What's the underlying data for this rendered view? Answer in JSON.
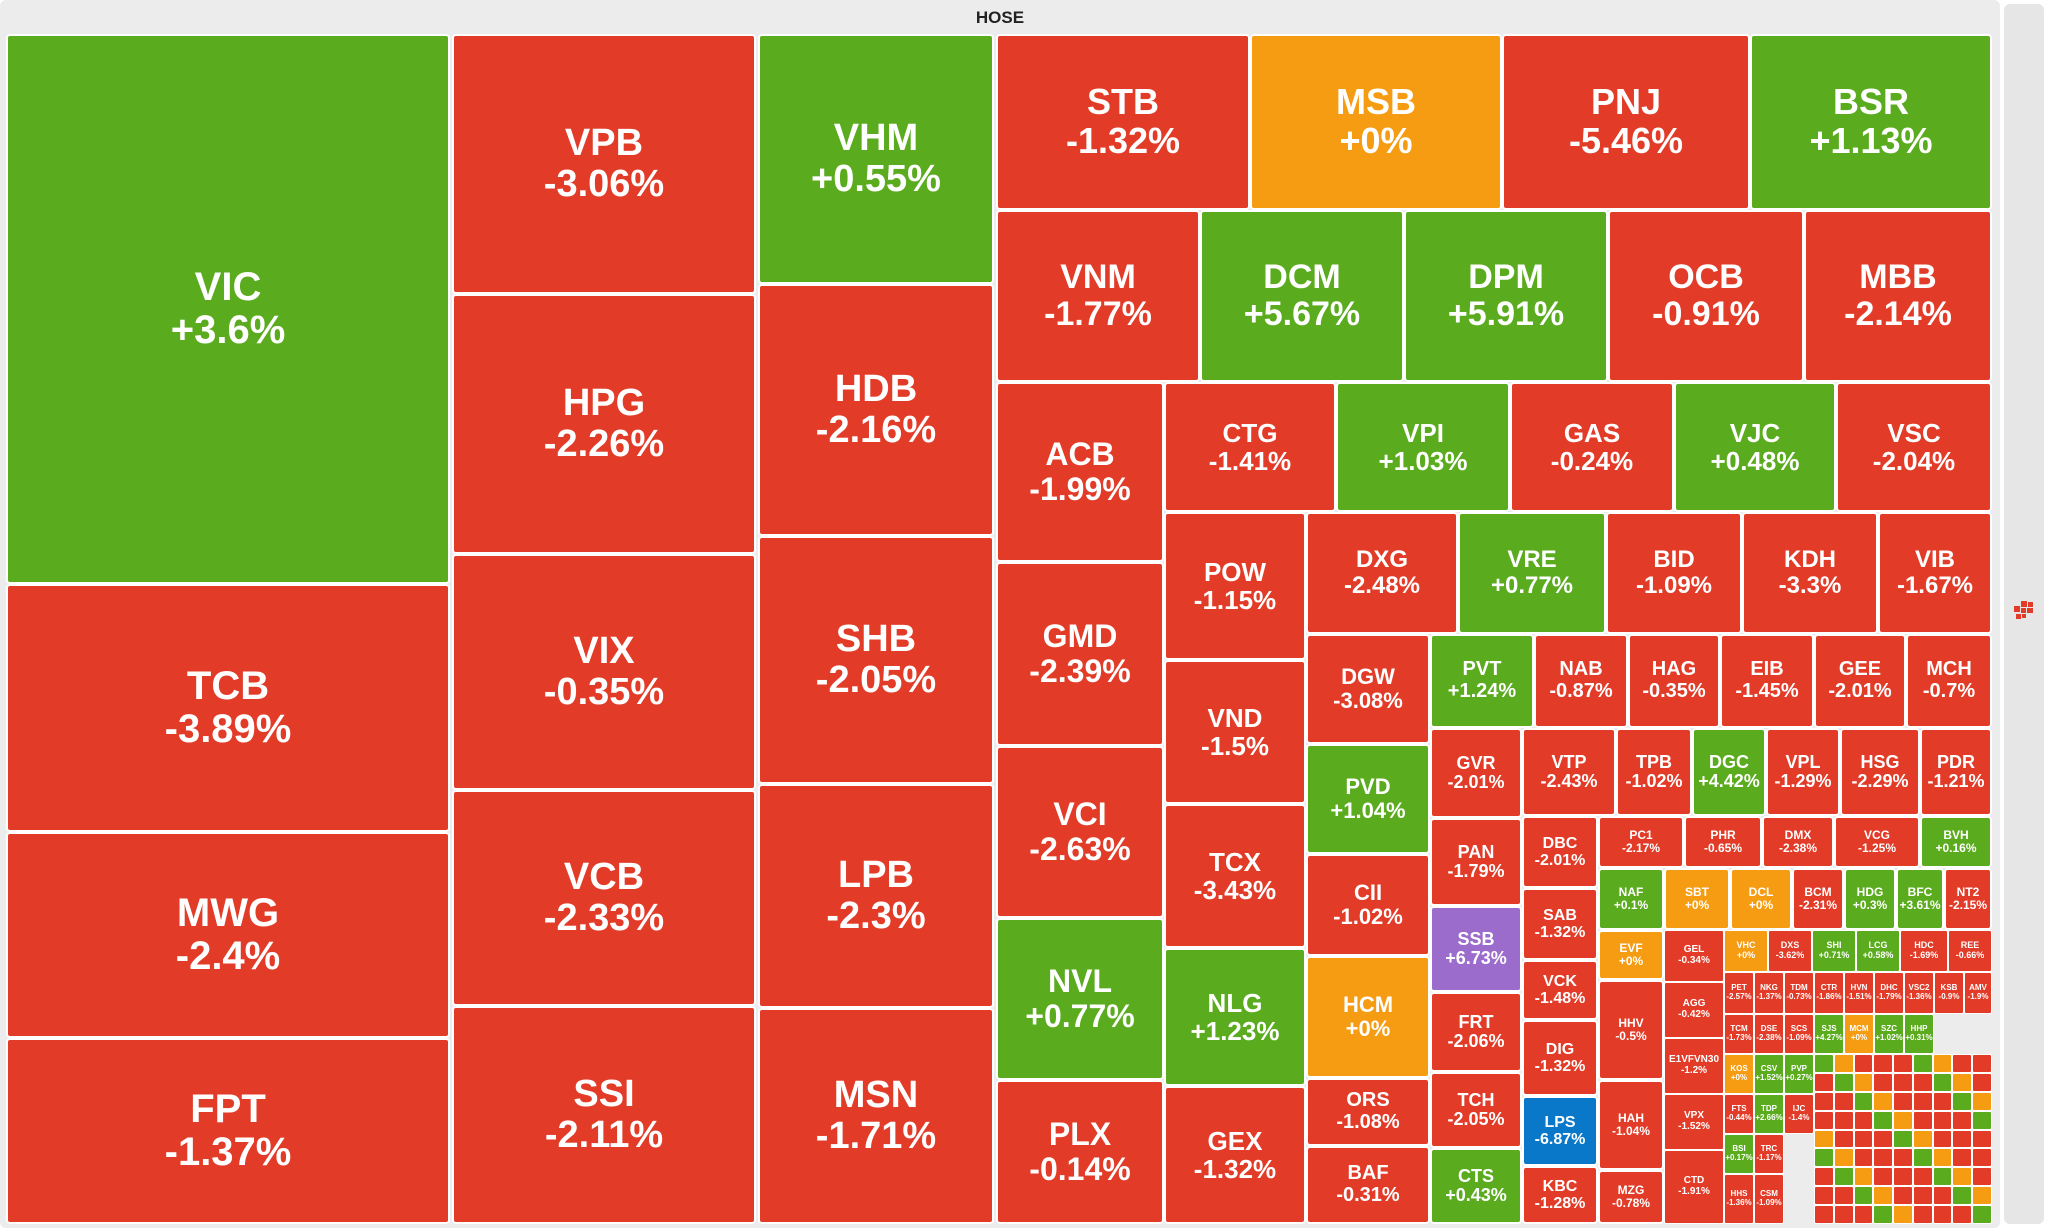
{
  "exchange_title": "HOSE",
  "colors": {
    "red": "#e23b28",
    "green": "#5aab1e",
    "orange": "#f59c12",
    "purple": "#9b6ccc",
    "blue": "#0a78c8"
  },
  "side_icon": "treemap-icon",
  "tiles": [
    {
      "sym": "VIC",
      "pct": "+3.6%",
      "color": "green"
    },
    {
      "sym": "TCB",
      "pct": "-3.89%",
      "color": "red"
    },
    {
      "sym": "MWG",
      "pct": "-2.4%",
      "color": "red"
    },
    {
      "sym": "FPT",
      "pct": "-1.37%",
      "color": "red"
    },
    {
      "sym": "VPB",
      "pct": "-3.06%",
      "color": "red"
    },
    {
      "sym": "HPG",
      "pct": "-2.26%",
      "color": "red"
    },
    {
      "sym": "VIX",
      "pct": "-0.35%",
      "color": "red"
    },
    {
      "sym": "VCB",
      "pct": "-2.33%",
      "color": "red"
    },
    {
      "sym": "SSI",
      "pct": "-2.11%",
      "color": "red"
    },
    {
      "sym": "VHM",
      "pct": "+0.55%",
      "color": "green"
    },
    {
      "sym": "HDB",
      "pct": "-2.16%",
      "color": "red"
    },
    {
      "sym": "SHB",
      "pct": "-2.05%",
      "color": "red"
    },
    {
      "sym": "LPB",
      "pct": "-2.3%",
      "color": "red"
    },
    {
      "sym": "MSN",
      "pct": "-1.71%",
      "color": "red"
    },
    {
      "sym": "STB",
      "pct": "-1.32%",
      "color": "red"
    },
    {
      "sym": "MSB",
      "pct": "+0%",
      "color": "orange"
    },
    {
      "sym": "PNJ",
      "pct": "-5.46%",
      "color": "red"
    },
    {
      "sym": "BSR",
      "pct": "+1.13%",
      "color": "green"
    },
    {
      "sym": "VNM",
      "pct": "-1.77%",
      "color": "red"
    },
    {
      "sym": "DCM",
      "pct": "+5.67%",
      "color": "green"
    },
    {
      "sym": "DPM",
      "pct": "+5.91%",
      "color": "green"
    },
    {
      "sym": "OCB",
      "pct": "-0.91%",
      "color": "red"
    },
    {
      "sym": "MBB",
      "pct": "-2.14%",
      "color": "red"
    },
    {
      "sym": "ACB",
      "pct": "-1.99%",
      "color": "red"
    },
    {
      "sym": "GMD",
      "pct": "-2.39%",
      "color": "red"
    },
    {
      "sym": "VCI",
      "pct": "-2.63%",
      "color": "red"
    },
    {
      "sym": "NVL",
      "pct": "+0.77%",
      "color": "green"
    },
    {
      "sym": "PLX",
      "pct": "-0.14%",
      "color": "red"
    },
    {
      "sym": "CTG",
      "pct": "-1.41%",
      "color": "red"
    },
    {
      "sym": "VPI",
      "pct": "+1.03%",
      "color": "green"
    },
    {
      "sym": "GAS",
      "pct": "-0.24%",
      "color": "red"
    },
    {
      "sym": "VJC",
      "pct": "+0.48%",
      "color": "green"
    },
    {
      "sym": "VSC",
      "pct": "-2.04%",
      "color": "red"
    },
    {
      "sym": "POW",
      "pct": "-1.15%",
      "color": "red"
    },
    {
      "sym": "VND",
      "pct": "-1.5%",
      "color": "red"
    },
    {
      "sym": "TCX",
      "pct": "-3.43%",
      "color": "red"
    },
    {
      "sym": "NLG",
      "pct": "+1.23%",
      "color": "green"
    },
    {
      "sym": "GEX",
      "pct": "-1.32%",
      "color": "red"
    },
    {
      "sym": "DXG",
      "pct": "-2.48%",
      "color": "red"
    },
    {
      "sym": "VRE",
      "pct": "+0.77%",
      "color": "green"
    },
    {
      "sym": "BID",
      "pct": "-1.09%",
      "color": "red"
    },
    {
      "sym": "KDH",
      "pct": "-3.3%",
      "color": "red"
    },
    {
      "sym": "VIB",
      "pct": "-1.67%",
      "color": "red"
    },
    {
      "sym": "DGW",
      "pct": "-3.08%",
      "color": "red"
    },
    {
      "sym": "PVD",
      "pct": "+1.04%",
      "color": "green"
    },
    {
      "sym": "CII",
      "pct": "-1.02%",
      "color": "red"
    },
    {
      "sym": "HCM",
      "pct": "+0%",
      "color": "orange"
    },
    {
      "sym": "ORS",
      "pct": "-1.08%",
      "color": "red"
    },
    {
      "sym": "BAF",
      "pct": "-0.31%",
      "color": "red"
    },
    {
      "sym": "PVT",
      "pct": "+1.24%",
      "color": "green"
    },
    {
      "sym": "NAB",
      "pct": "-0.87%",
      "color": "red"
    },
    {
      "sym": "HAG",
      "pct": "-0.35%",
      "color": "red"
    },
    {
      "sym": "EIB",
      "pct": "-1.45%",
      "color": "red"
    },
    {
      "sym": "GEE",
      "pct": "-2.01%",
      "color": "red"
    },
    {
      "sym": "MCH",
      "pct": "-0.7%",
      "color": "red"
    },
    {
      "sym": "GVR",
      "pct": "-2.01%",
      "color": "red"
    },
    {
      "sym": "PAN",
      "pct": "-1.79%",
      "color": "red"
    },
    {
      "sym": "SSB",
      "pct": "+6.73%",
      "color": "purple"
    },
    {
      "sym": "FRT",
      "pct": "-2.06%",
      "color": "red"
    },
    {
      "sym": "TCH",
      "pct": "-2.05%",
      "color": "red"
    },
    {
      "sym": "CTS",
      "pct": "+0.43%",
      "color": "green"
    },
    {
      "sym": "VTP",
      "pct": "-2.43%",
      "color": "red"
    },
    {
      "sym": "TPB",
      "pct": "-1.02%",
      "color": "red"
    },
    {
      "sym": "DGC",
      "pct": "+4.42%",
      "color": "green"
    },
    {
      "sym": "VPL",
      "pct": "-1.29%",
      "color": "red"
    },
    {
      "sym": "HSG",
      "pct": "-2.29%",
      "color": "red"
    },
    {
      "sym": "PDR",
      "pct": "-1.21%",
      "color": "red"
    },
    {
      "sym": "DBC",
      "pct": "-2.01%",
      "color": "red"
    },
    {
      "sym": "SAB",
      "pct": "-1.32%",
      "color": "red"
    },
    {
      "sym": "VCK",
      "pct": "-1.48%",
      "color": "red"
    },
    {
      "sym": "DIG",
      "pct": "-1.32%",
      "color": "red"
    },
    {
      "sym": "LPS",
      "pct": "-6.87%",
      "color": "blue"
    },
    {
      "sym": "KBC",
      "pct": "-1.28%",
      "color": "red"
    },
    {
      "sym": "PC1",
      "pct": "-2.17%",
      "color": "red"
    },
    {
      "sym": "PHR",
      "pct": "-0.65%",
      "color": "red"
    },
    {
      "sym": "DMX",
      "pct": "-2.38%",
      "color": "red"
    },
    {
      "sym": "VCG",
      "pct": "-1.25%",
      "color": "red"
    },
    {
      "sym": "BVH",
      "pct": "+0.16%",
      "color": "green"
    },
    {
      "sym": "NAF",
      "pct": "+0.1%",
      "color": "green"
    },
    {
      "sym": "SBT",
      "pct": "+0%",
      "color": "orange"
    },
    {
      "sym": "DCL",
      "pct": "+0%",
      "color": "orange"
    },
    {
      "sym": "BCM",
      "pct": "-2.31%",
      "color": "red"
    },
    {
      "sym": "HDG",
      "pct": "+0.3%",
      "color": "green"
    },
    {
      "sym": "BFC",
      "pct": "+3.61%",
      "color": "green"
    },
    {
      "sym": "NT2",
      "pct": "-2.15%",
      "color": "red"
    },
    {
      "sym": "EVF",
      "pct": "+0%",
      "color": "orange"
    },
    {
      "sym": "HHV",
      "pct": "-0.5%",
      "color": "red"
    },
    {
      "sym": "HAH",
      "pct": "-1.04%",
      "color": "red"
    },
    {
      "sym": "MZG",
      "pct": "-0.78%",
      "color": "red"
    },
    {
      "sym": "GEL",
      "pct": "-0.34%",
      "color": "red"
    },
    {
      "sym": "AGG",
      "pct": "-0.42%",
      "color": "red"
    },
    {
      "sym": "E1VFVN30",
      "pct": "-1.2%",
      "color": "red"
    },
    {
      "sym": "VPX",
      "pct": "-1.52%",
      "color": "red"
    },
    {
      "sym": "CTD",
      "pct": "-1.91%",
      "color": "red"
    },
    {
      "sym": "VHC",
      "pct": "+0%",
      "color": "orange"
    },
    {
      "sym": "DXS",
      "pct": "-3.62%",
      "color": "red"
    },
    {
      "sym": "SHI",
      "pct": "+0.71%",
      "color": "green"
    },
    {
      "sym": "LCG",
      "pct": "+0.58%",
      "color": "green"
    },
    {
      "sym": "HDC",
      "pct": "-1.69%",
      "color": "red"
    },
    {
      "sym": "REE",
      "pct": "-0.66%",
      "color": "red"
    },
    {
      "sym": "PET",
      "pct": "-2.57%",
      "color": "red"
    },
    {
      "sym": "TCM",
      "pct": "-1.73%",
      "color": "red"
    },
    {
      "sym": "KOS",
      "pct": "+0%",
      "color": "orange"
    },
    {
      "sym": "FTS",
      "pct": "-0.44%",
      "color": "red"
    },
    {
      "sym": "BSI",
      "pct": "+0.17%",
      "color": "green"
    },
    {
      "sym": "HHS",
      "pct": "-1.36%",
      "color": "red"
    },
    {
      "sym": "NKG",
      "pct": "-1.37%",
      "color": "red"
    },
    {
      "sym": "TDM",
      "pct": "-0.73%",
      "color": "red"
    },
    {
      "sym": "CTR",
      "pct": "-1.86%",
      "color": "red"
    },
    {
      "sym": "HVN",
      "pct": "-1.51%",
      "color": "red"
    },
    {
      "sym": "DHC",
      "pct": "-1.79%",
      "color": "red"
    },
    {
      "sym": "VSC2",
      "pct": "-1.36%",
      "color": "red"
    },
    {
      "sym": "DSE",
      "pct": "-2.38%",
      "color": "red"
    },
    {
      "sym": "CSV",
      "pct": "+1.52%",
      "color": "green"
    },
    {
      "sym": "TDP",
      "pct": "+2.66%",
      "color": "green"
    },
    {
      "sym": "TRC",
      "pct": "-1.17%",
      "color": "red"
    },
    {
      "sym": "CSM",
      "pct": "-1.09%",
      "color": "red"
    },
    {
      "sym": "SCS",
      "pct": "-1.09%",
      "color": "red"
    },
    {
      "sym": "SJS",
      "pct": "+4.27%",
      "color": "green"
    },
    {
      "sym": "MCM",
      "pct": "+0%",
      "color": "orange"
    },
    {
      "sym": "SZC",
      "pct": "+1.02%",
      "color": "green"
    },
    {
      "sym": "HHP",
      "pct": "+0.31%",
      "color": "green"
    },
    {
      "sym": "KSB",
      "pct": "-0.9%",
      "color": "red"
    },
    {
      "sym": "AMV",
      "pct": "-1.9%",
      "color": "red"
    },
    {
      "sym": "PVP",
      "pct": "+0.27%",
      "color": "green"
    },
    {
      "sym": "IJC",
      "pct": "-1.4%",
      "color": "red"
    }
  ]
}
